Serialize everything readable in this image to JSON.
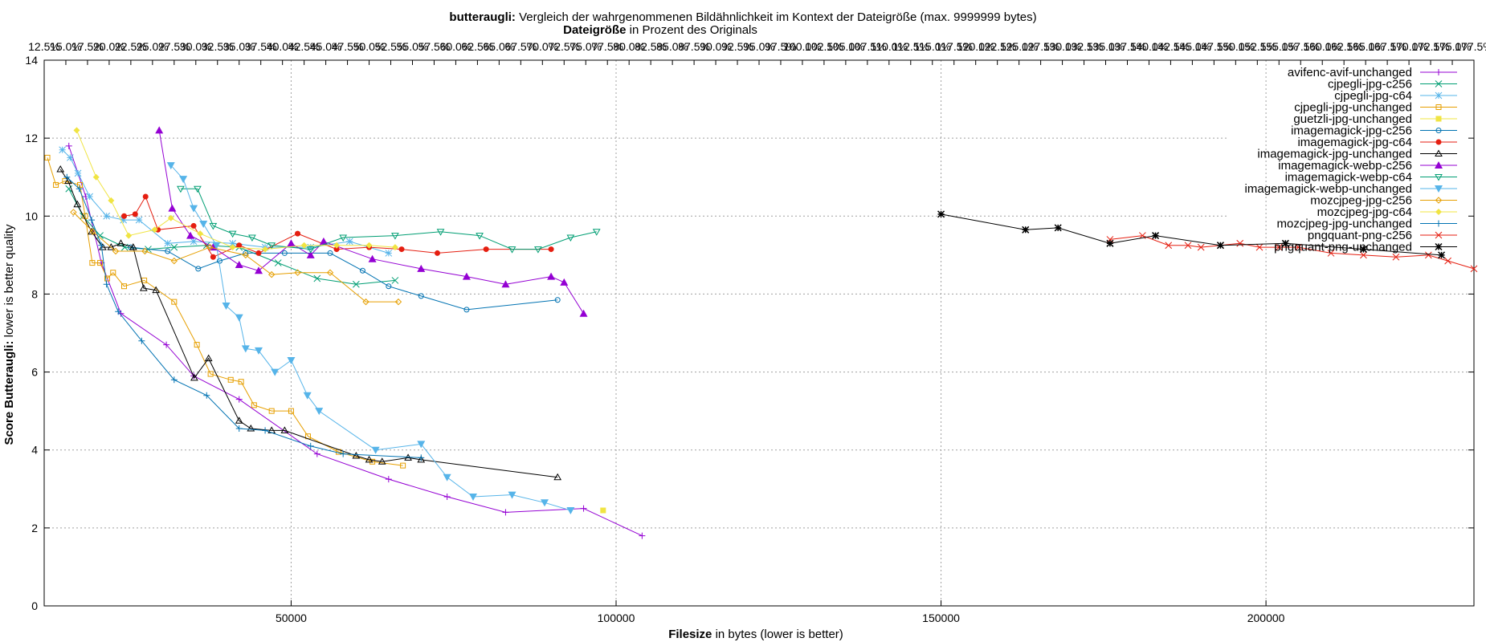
{
  "chart_data": {
    "type": "line",
    "title": {
      "prefix": "butteraugli:",
      "rest": " Vergleich der wahrgenommenen Bildähnlichkeit im Kontext der Dateigröße (max. 9999999 bytes)"
    },
    "x2label": {
      "bold": "Dateigröße",
      "rest": " in Prozent des Originals"
    },
    "xlabel": {
      "bold": "Filesize",
      "rest": " in bytes (lower is better)"
    },
    "ylabel": {
      "bold": "Score Butteraugli:",
      "rest": " lower is better quality"
    },
    "xlim": [
      12000,
      232000
    ],
    "ylim": [
      0,
      14
    ],
    "grid": true,
    "legend_position": "top-right",
    "x_ticks": [
      50000,
      100000,
      150000,
      200000
    ],
    "x_tick_labels": [
      "50000",
      "100000",
      "150000",
      "200000"
    ],
    "y_ticks": [
      0,
      2,
      4,
      6,
      8,
      10,
      12,
      14
    ],
    "y_tick_labels": [
      "0",
      "2",
      "4",
      "6",
      "8",
      "10",
      "12",
      "14"
    ],
    "x2_ticks": [
      "12.5%",
      "15.0%",
      "17.5%",
      "20.0%",
      "22.5%",
      "25.0%",
      "27.5%",
      "30.0%",
      "32.5%",
      "35.0%",
      "37.5%",
      "40.0%",
      "42.5%",
      "45.0%",
      "47.5%",
      "50.0%",
      "52.5%",
      "55.0%",
      "57.5%",
      "60.0%",
      "62.5%",
      "65.0%",
      "67.5%",
      "70.0%",
      "72.5%",
      "75.0%",
      "77.5%",
      "80.0%",
      "82.5%",
      "85.0%",
      "87.5%",
      "90.0%",
      "92.5%",
      "95.0%",
      "97.5%",
      "100.0%",
      "102.5%",
      "105.0%",
      "107.5%",
      "110.0%",
      "112.5%",
      "115.0%",
      "117.5%",
      "120.0%",
      "122.5%",
      "125.0%",
      "127.5%",
      "130.0%",
      "132.5%",
      "135.0%",
      "137.5%",
      "140.0%",
      "142.5%",
      "145.0%",
      "147.5%",
      "150.0%",
      "152.5%",
      "155.0%",
      "157.5%",
      "160.0%",
      "162.5%",
      "165.0%",
      "167.5%",
      "170.0%",
      "172.5%",
      "175.0%",
      "177.5%"
    ],
    "series": [
      {
        "name": "avifenc-avif-unchanged",
        "color": "#9400d3",
        "marker": "plus",
        "points": [
          [
            15800,
            11.8
          ],
          [
            18400,
            10.5
          ],
          [
            20800,
            8.8
          ],
          [
            23800,
            7.5
          ],
          [
            30800,
            6.7
          ],
          [
            35000,
            5.9
          ],
          [
            42000,
            5.3
          ],
          [
            54000,
            3.9
          ],
          [
            65000,
            3.25
          ],
          [
            74000,
            2.8
          ],
          [
            83000,
            2.4
          ],
          [
            95000,
            2.5
          ],
          [
            104000,
            1.8
          ]
        ]
      },
      {
        "name": "cjpegli-jpg-c256",
        "color": "#009e73",
        "marker": "x",
        "points": [
          [
            15800,
            10.7
          ],
          [
            18000,
            10.0
          ],
          [
            20600,
            9.5
          ],
          [
            24400,
            9.2
          ],
          [
            28000,
            9.15
          ],
          [
            32000,
            9.2
          ],
          [
            37000,
            9.25
          ],
          [
            42000,
            9.2
          ],
          [
            48000,
            8.8
          ],
          [
            54000,
            8.4
          ],
          [
            60000,
            8.25
          ],
          [
            66000,
            8.35
          ]
        ]
      },
      {
        "name": "cjpegli-jpg-c64",
        "color": "#56b4e9",
        "marker": "star",
        "points": [
          [
            14800,
            11.7
          ],
          [
            16000,
            11.5
          ],
          [
            17200,
            11.1
          ],
          [
            19000,
            10.5
          ],
          [
            21600,
            10.0
          ],
          [
            24200,
            9.9
          ],
          [
            26600,
            9.9
          ],
          [
            31000,
            9.3
          ],
          [
            35000,
            9.35
          ],
          [
            41000,
            9.3
          ],
          [
            46000,
            9.2
          ],
          [
            53000,
            9.2
          ],
          [
            59000,
            9.35
          ],
          [
            65000,
            9.05
          ]
        ]
      },
      {
        "name": "cjpegli-jpg-unchanged",
        "color": "#e69f00",
        "marker": "square",
        "points": [
          [
            12500,
            11.5
          ],
          [
            13800,
            10.8
          ],
          [
            15200,
            10.9
          ],
          [
            17500,
            10.8
          ],
          [
            18300,
            10.0
          ],
          [
            19400,
            8.8
          ],
          [
            20600,
            8.8
          ],
          [
            21700,
            8.4
          ],
          [
            22600,
            8.55
          ],
          [
            24300,
            8.2
          ],
          [
            27400,
            8.35
          ],
          [
            32000,
            7.8
          ],
          [
            35500,
            6.7
          ],
          [
            37600,
            5.95
          ],
          [
            40700,
            5.8
          ],
          [
            42300,
            5.75
          ],
          [
            44300,
            5.15
          ],
          [
            47000,
            5.0
          ],
          [
            50000,
            5.0
          ],
          [
            52600,
            4.35
          ],
          [
            57300,
            3.95
          ],
          [
            62500,
            3.7
          ],
          [
            67200,
            3.6
          ]
        ]
      },
      {
        "name": "guetzli-jpg-unchanged",
        "color": "#f0e442",
        "marker": "filled-square",
        "points": [
          [
            98000,
            2.45
          ]
        ]
      },
      {
        "name": "imagemagick-jpg-c256",
        "color": "#0072b2",
        "marker": "circle",
        "points": [
          [
            25300,
            9.2
          ],
          [
            31000,
            9.1
          ],
          [
            35700,
            8.65
          ],
          [
            39000,
            8.85
          ],
          [
            43000,
            9.05
          ],
          [
            49000,
            9.05
          ],
          [
            56000,
            9.05
          ],
          [
            61000,
            8.6
          ],
          [
            65000,
            8.2
          ],
          [
            70000,
            7.95
          ],
          [
            77000,
            7.6
          ],
          [
            91000,
            7.85
          ]
        ]
      },
      {
        "name": "imagemagick-jpg-c64",
        "color": "#e51e10",
        "marker": "filled-circle",
        "points": [
          [
            24300,
            10.0
          ],
          [
            26000,
            10.05
          ],
          [
            27600,
            10.5
          ],
          [
            29500,
            9.65
          ],
          [
            35000,
            9.75
          ],
          [
            38000,
            8.95
          ],
          [
            42000,
            9.25
          ],
          [
            45000,
            9.05
          ],
          [
            51000,
            9.55
          ],
          [
            57000,
            9.15
          ],
          [
            62000,
            9.2
          ],
          [
            67000,
            9.15
          ],
          [
            72500,
            9.05
          ],
          [
            80000,
            9.15
          ],
          [
            90000,
            9.15
          ]
        ]
      },
      {
        "name": "imagemagick-jpg-unchanged",
        "color": "#000000",
        "marker": "triangle",
        "points": [
          [
            14500,
            11.2
          ],
          [
            15700,
            10.9
          ],
          [
            17100,
            10.3
          ],
          [
            19300,
            9.6
          ],
          [
            21000,
            9.2
          ],
          [
            22300,
            9.2
          ],
          [
            23800,
            9.3
          ],
          [
            25700,
            9.2
          ],
          [
            27300,
            8.15
          ],
          [
            29200,
            8.1
          ],
          [
            35100,
            5.85
          ],
          [
            37300,
            6.35
          ],
          [
            42000,
            4.75
          ],
          [
            43800,
            4.55
          ],
          [
            47000,
            4.5
          ],
          [
            49000,
            4.5
          ],
          [
            60000,
            3.85
          ],
          [
            62000,
            3.75
          ],
          [
            64000,
            3.7
          ],
          [
            68000,
            3.8
          ],
          [
            70000,
            3.75
          ],
          [
            91000,
            3.3
          ]
        ]
      },
      {
        "name": "imagemagick-webp-c256",
        "color": "#9400d3",
        "marker": "filled-triangle",
        "points": [
          [
            29700,
            12.2
          ],
          [
            31700,
            10.2
          ],
          [
            34500,
            9.5
          ],
          [
            38000,
            9.2
          ],
          [
            42000,
            8.75
          ],
          [
            45000,
            8.6
          ],
          [
            50000,
            9.3
          ],
          [
            53000,
            9.0
          ],
          [
            55000,
            9.35
          ],
          [
            62500,
            8.9
          ],
          [
            70000,
            8.65
          ],
          [
            77000,
            8.45
          ],
          [
            83000,
            8.25
          ],
          [
            90000,
            8.45
          ],
          [
            92000,
            8.3
          ],
          [
            95000,
            7.5
          ]
        ]
      },
      {
        "name": "imagemagick-webp-c64",
        "color": "#009e73",
        "marker": "inverted-triangle",
        "points": [
          [
            33000,
            10.7
          ],
          [
            35600,
            10.7
          ],
          [
            38000,
            9.75
          ],
          [
            41000,
            9.55
          ],
          [
            44000,
            9.45
          ],
          [
            47000,
            9.25
          ],
          [
            53000,
            9.15
          ],
          [
            58000,
            9.45
          ],
          [
            66000,
            9.5
          ],
          [
            73000,
            9.6
          ],
          [
            79000,
            9.5
          ],
          [
            84000,
            9.15
          ],
          [
            88000,
            9.15
          ],
          [
            93000,
            9.45
          ],
          [
            97000,
            9.6
          ]
        ]
      },
      {
        "name": "imagemagick-webp-unchanged",
        "color": "#56b4e9",
        "marker": "filled-inverted-triangle",
        "points": [
          [
            31500,
            11.3
          ],
          [
            33400,
            10.95
          ],
          [
            35000,
            10.2
          ],
          [
            36500,
            9.8
          ],
          [
            38500,
            9.25
          ],
          [
            40000,
            7.7
          ],
          [
            42000,
            7.4
          ],
          [
            43000,
            6.6
          ],
          [
            45000,
            6.55
          ],
          [
            47500,
            6.0
          ],
          [
            50000,
            6.3
          ],
          [
            52500,
            5.4
          ],
          [
            54300,
            5.0
          ],
          [
            63000,
            4.0
          ],
          [
            70000,
            4.15
          ],
          [
            74000,
            3.3
          ],
          [
            78000,
            2.8
          ],
          [
            84000,
            2.85
          ],
          [
            89000,
            2.65
          ],
          [
            93000,
            2.45
          ]
        ]
      },
      {
        "name": "mozcjpeg-jpg-c256",
        "color": "#e69f00",
        "marker": "diamond",
        "points": [
          [
            16500,
            10.1
          ],
          [
            19500,
            9.6
          ],
          [
            23000,
            9.1
          ],
          [
            27500,
            9.1
          ],
          [
            32000,
            8.85
          ],
          [
            37500,
            9.2
          ],
          [
            43000,
            9.0
          ],
          [
            47000,
            8.5
          ],
          [
            51000,
            8.55
          ],
          [
            56000,
            8.55
          ],
          [
            61500,
            7.8
          ],
          [
            66500,
            7.8
          ]
        ]
      },
      {
        "name": "mozcjpeg-jpg-c64",
        "color": "#f0e442",
        "marker": "filled-diamond",
        "points": [
          [
            17000,
            12.2
          ],
          [
            20000,
            11.0
          ],
          [
            22300,
            10.4
          ],
          [
            25000,
            9.5
          ],
          [
            29000,
            9.65
          ],
          [
            31500,
            9.95
          ],
          [
            36000,
            9.55
          ],
          [
            41000,
            9.2
          ],
          [
            46000,
            9.15
          ],
          [
            52000,
            9.25
          ],
          [
            57000,
            9.25
          ],
          [
            62000,
            9.25
          ],
          [
            66000,
            9.2
          ]
        ]
      },
      {
        "name": "mozcjpeg-jpg-unchanged",
        "color": "#0072b2",
        "marker": "plus",
        "points": [
          [
            15500,
            11.0
          ],
          [
            17400,
            10.7
          ],
          [
            19300,
            9.9
          ],
          [
            20800,
            9.25
          ],
          [
            21600,
            8.25
          ],
          [
            23400,
            7.55
          ],
          [
            27000,
            6.8
          ],
          [
            32000,
            5.8
          ],
          [
            37000,
            5.4
          ],
          [
            42000,
            4.55
          ],
          [
            46000,
            4.5
          ],
          [
            53000,
            4.1
          ],
          [
            58000,
            3.9
          ],
          [
            70000,
            3.8
          ]
        ]
      },
      {
        "name": "pngquant-png-c256",
        "color": "#e51e10",
        "marker": "x",
        "points": [
          [
            176000,
            9.4
          ],
          [
            181000,
            9.5
          ],
          [
            185000,
            9.25
          ],
          [
            188000,
            9.25
          ],
          [
            190000,
            9.2
          ],
          [
            193000,
            9.25
          ],
          [
            196000,
            9.3
          ],
          [
            199000,
            9.2
          ],
          [
            202000,
            9.2
          ],
          [
            205000,
            9.2
          ],
          [
            210000,
            9.05
          ],
          [
            215000,
            9.0
          ],
          [
            220000,
            8.95
          ],
          [
            225000,
            9.0
          ],
          [
            228000,
            8.85
          ],
          [
            232000,
            8.65
          ]
        ]
      },
      {
        "name": "pngquant-png-unchanged",
        "color": "#000000",
        "marker": "asterisk",
        "points": [
          [
            150000,
            10.05
          ],
          [
            163000,
            9.65
          ],
          [
            168000,
            9.7
          ],
          [
            176000,
            9.3
          ],
          [
            183000,
            9.5
          ],
          [
            193000,
            9.25
          ],
          [
            203000,
            9.3
          ],
          [
            215000,
            9.15
          ],
          [
            227000,
            9.0
          ]
        ]
      }
    ]
  }
}
